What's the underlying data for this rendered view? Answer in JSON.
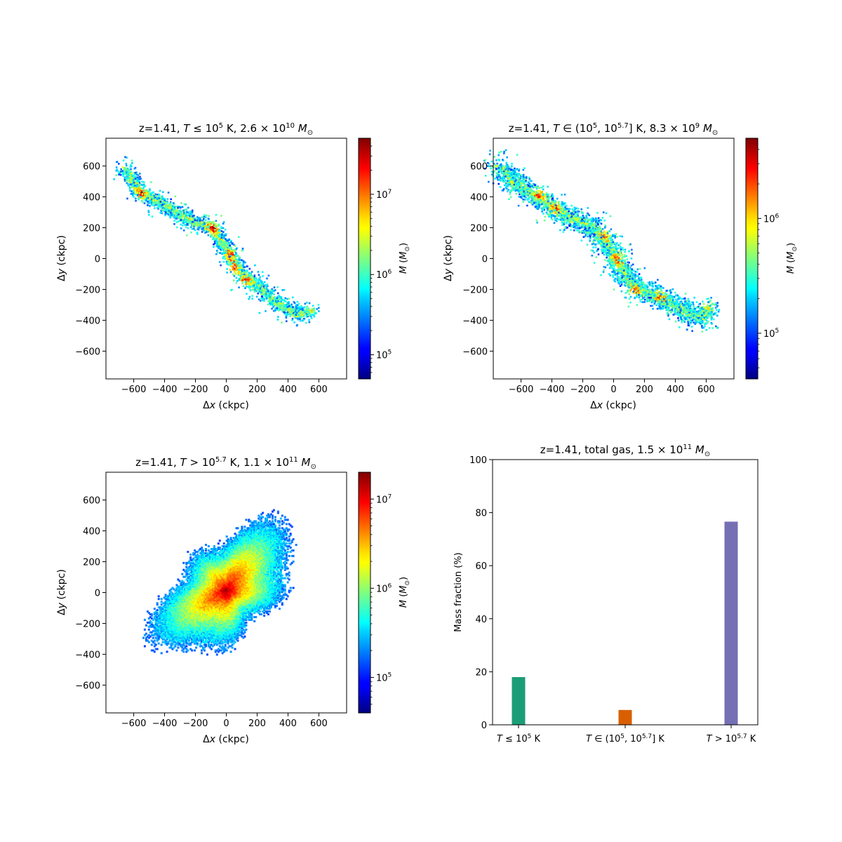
{
  "chart_data": [
    {
      "type": "heatmap",
      "title": "z=1.41, T ≤ 10⁵ K, 2.6 × 10¹⁰ M⊙",
      "xlabel": "Δx (ckpc)",
      "ylabel": "Δy (ckpc)",
      "xlim": [
        -780,
        780
      ],
      "ylim": [
        -780,
        780
      ],
      "xticks": [
        -600,
        -400,
        -200,
        0,
        200,
        400,
        600
      ],
      "yticks": [
        -600,
        -400,
        -200,
        0,
        200,
        400,
        600
      ],
      "colorbar": {
        "label": "M (M⊙)",
        "scale": "log",
        "range": [
          50000,
          50000000
        ],
        "ticks": [
          100000,
          1000000,
          10000000
        ],
        "tick_labels": [
          "10⁵",
          "10⁶",
          "10⁷"
        ],
        "colormap": "jet"
      },
      "structure": "filamentary",
      "spine": [
        [
          -660,
          590
        ],
        [
          -560,
          430
        ],
        [
          -420,
          360
        ],
        [
          -300,
          290
        ],
        [
          -200,
          240
        ],
        [
          -90,
          200
        ],
        [
          0,
          60
        ],
        [
          40,
          0
        ],
        [
          110,
          -110
        ],
        [
          200,
          -170
        ],
        [
          290,
          -260
        ],
        [
          390,
          -320
        ],
        [
          450,
          -360
        ],
        [
          560,
          -330
        ]
      ],
      "hotspots": [
        [
          -95,
          200
        ],
        [
          20,
          30
        ],
        [
          -50,
          -110
        ],
        [
          40,
          -60
        ],
        [
          -560,
          430
        ],
        [
          120,
          -140
        ]
      ]
    },
    {
      "type": "heatmap",
      "title": "z=1.41, T ∈ (10⁵, 10^5.7] K, 8.3 × 10⁹ M⊙",
      "xlabel": "Δx (ckpc)",
      "ylabel": "Δy (ckpc)",
      "xlim": [
        -780,
        780
      ],
      "ylim": [
        -780,
        780
      ],
      "xticks": [
        -600,
        -400,
        -200,
        0,
        200,
        400,
        600
      ],
      "yticks": [
        -600,
        -400,
        -200,
        0,
        200,
        400,
        600
      ],
      "colorbar": {
        "label": "M (M⊙)",
        "scale": "log",
        "range": [
          40000,
          5000000
        ],
        "ticks": [
          100000,
          1000000
        ],
        "tick_labels": [
          "10⁵",
          "10⁶"
        ],
        "colormap": "jet"
      },
      "structure": "filamentary-broad",
      "spine": [
        [
          -740,
          600
        ],
        [
          -640,
          490
        ],
        [
          -520,
          420
        ],
        [
          -400,
          340
        ],
        [
          -280,
          270
        ],
        [
          -130,
          200
        ],
        [
          -40,
          80
        ],
        [
          20,
          -10
        ],
        [
          100,
          -150
        ],
        [
          200,
          -210
        ],
        [
          320,
          -260
        ],
        [
          440,
          -330
        ],
        [
          560,
          -380
        ],
        [
          620,
          -300
        ]
      ],
      "hotspots": [
        [
          -480,
          420
        ],
        [
          -380,
          330
        ],
        [
          -60,
          160
        ],
        [
          20,
          0
        ],
        [
          130,
          -200
        ],
        [
          300,
          -240
        ]
      ]
    },
    {
      "type": "heatmap",
      "title": "z=1.41, T > 10^5.7 K, 1.1 × 10¹¹ M⊙",
      "xlabel": "Δx (ckpc)",
      "ylabel": "Δy (ckpc)",
      "xlim": [
        -780,
        780
      ],
      "ylim": [
        -780,
        780
      ],
      "xticks": [
        -600,
        -400,
        -200,
        0,
        200,
        400,
        600
      ],
      "yticks": [
        -600,
        -400,
        -200,
        0,
        200,
        400,
        600
      ],
      "colorbar": {
        "label": "M (M⊙)",
        "scale": "log",
        "range": [
          40000,
          20000000
        ],
        "ticks": [
          100000,
          1000000,
          10000000
        ],
        "tick_labels": [
          "10⁵",
          "10⁶",
          "10⁷"
        ],
        "colormap": "jet"
      },
      "structure": "diffuse-halo",
      "center": [
        0,
        20
      ],
      "extent": {
        "major_ckpc": 560,
        "minor_ckpc": 290,
        "angle_deg": -42
      },
      "peak": [
        20,
        -10
      ]
    },
    {
      "type": "bar",
      "title": "z=1.41, total gas, 1.5 × 10¹¹ M⊙",
      "categories": [
        "T ≤ 10⁵ K",
        "T ∈ (10⁵, 10^5.7] K",
        "T > 10^5.7 K"
      ],
      "values": [
        18.0,
        5.6,
        76.6
      ],
      "colors": [
        "#1b9e77",
        "#d95f02",
        "#7570b3"
      ],
      "xlabel": "",
      "ylabel": "Mass fraction (%)",
      "ylim": [
        0,
        100
      ],
      "yticks": [
        0,
        20,
        40,
        60,
        80,
        100
      ]
    }
  ]
}
